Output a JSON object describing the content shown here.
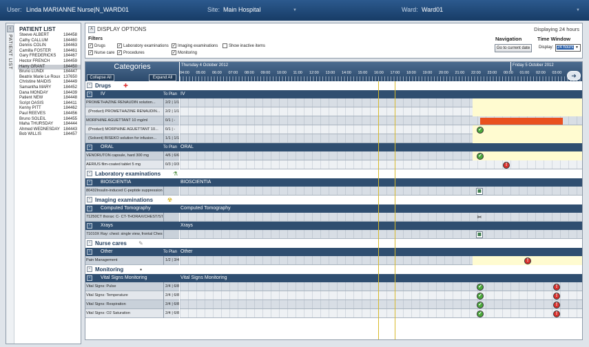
{
  "header": {
    "user_label": "User:",
    "user_name": "Linda MARIANNE",
    "user_role": "Nurse|N_WARD01",
    "site_label": "Site:",
    "site_value": "Main Hospital",
    "ward_label": "Ward:",
    "ward_value": "Ward01"
  },
  "sidebar": {
    "vertical_label": "PATIENT LIST",
    "title": "PATIENT LIST",
    "patients": [
      {
        "name": "Steeve ALBERT",
        "id": "184458"
      },
      {
        "name": "Cathy CALLUM",
        "id": "184460"
      },
      {
        "name": "Dennis COLIN",
        "id": "184463"
      },
      {
        "name": "Camilla FOSTER",
        "id": "184461"
      },
      {
        "name": "Gary FREDERICKS",
        "id": "184467"
      },
      {
        "name": "Hector FRENCH",
        "id": "184459"
      },
      {
        "name": "Harry GRANT",
        "id": "184450"
      },
      {
        "name": "Bruno LUNDI",
        "id": "184447"
      },
      {
        "name": "Beatrix Marie Le Roux",
        "id": "137650"
      },
      {
        "name": "Christine MAIDIS",
        "id": "184449"
      },
      {
        "name": "Samantha MARY",
        "id": "184452"
      },
      {
        "name": "Dana MONDAY",
        "id": "184439"
      },
      {
        "name": "Patient NEW",
        "id": "184448"
      },
      {
        "name": "Script OASIS",
        "id": "184411"
      },
      {
        "name": "Kenny PITT",
        "id": "184462"
      },
      {
        "name": "Paul REEVES",
        "id": "184456"
      },
      {
        "name": "Bruno SOLEIL",
        "id": "184455"
      },
      {
        "name": "Maha THURSDAY",
        "id": "184444"
      },
      {
        "name": "Ahmed WEDNESDAY",
        "id": "184443"
      },
      {
        "name": "Bob WILLIS",
        "id": "184457"
      }
    ],
    "selected_index": 6
  },
  "display": {
    "title": "DISPLAY OPTIONS",
    "hours": "Displaying 24 hours",
    "filters_label": "Filters",
    "filters": [
      {
        "label": "Drugs",
        "checked": "✓"
      },
      {
        "label": "Nurse care",
        "checked": "✓"
      },
      {
        "label": "Laboratory examinations",
        "checked": "✓"
      },
      {
        "label": "Procedures",
        "checked": "✓"
      },
      {
        "label": "Imaging examinations",
        "checked": "✓"
      },
      {
        "label": "Monitoring",
        "checked": "✓"
      },
      {
        "label": "Show inactive items",
        "checked": ""
      }
    ],
    "navigation_label": "Navigation",
    "nav_button": "Go to current date",
    "time_window_label": "Time Window",
    "display_label": "Display:",
    "display_value": "24 hours"
  },
  "grid": {
    "categories_title": "Categories",
    "collapse_all": "Collapse All",
    "expand_all": "Expand All",
    "day1": "Thursday 4 October 2012",
    "day2": "Friday 5 October 2012",
    "hours": [
      "04:00",
      "05:00",
      "06:00",
      "07:00",
      "08:00",
      "09:00",
      "10:00",
      "11:00",
      "12:00",
      "13:00",
      "14:00",
      "15:00",
      "16:00",
      "17:00",
      "18:00",
      "19:00",
      "20:00",
      "21:00",
      "22:00",
      "23:00",
      "00:00",
      "01:00",
      "02:00",
      "03:00"
    ]
  },
  "rows": [
    {
      "type": "section",
      "label": "Drugs",
      "icon": "drugs-icon"
    },
    {
      "type": "group",
      "label": "IV",
      "to_plan": "To Plan",
      "label2": "IV"
    },
    {
      "type": "item",
      "name": "PROMETHAZINE RENAUDIN solution...",
      "value": "2/2 | 1/1",
      "alt": false,
      "yellow": true
    },
    {
      "type": "item",
      "name": "(Product) PROMETHAZINE RENAUDIN...",
      "value": "2/2 | 1/1",
      "alt": true,
      "indent": true,
      "yellow": true
    },
    {
      "type": "item",
      "name": "MORPHINE AGUETTANT 10 mg/ml",
      "value": "0/1 | -",
      "alt": false,
      "redbar": true
    },
    {
      "type": "item",
      "name": "(Product) MORPHINE AGUETTANT 10...",
      "value": "0/1 | -",
      "alt": true,
      "indent": true,
      "yellow": true,
      "marker": "g"
    },
    {
      "type": "item",
      "name": "(Solvent) BISEKO solution for infusion...",
      "value": "1/1 | 1/1",
      "alt": false,
      "indent": true,
      "yellow": true
    },
    {
      "type": "group",
      "label": "ORAL",
      "to_plan": "To Plan",
      "label2": "ORAL"
    },
    {
      "type": "item",
      "name": "VENORUTON capsule, hard 300 mg",
      "value": "4/6 | 6/6",
      "alt": false,
      "yellow": true,
      "marker": "g"
    },
    {
      "type": "item",
      "name": "AERIUS film-coated tablet 5 mg",
      "value": "0/3 | 0/3",
      "alt": true,
      "marker2": "r"
    },
    {
      "type": "section",
      "label": "Laboratory examinations",
      "icon": "lab-icon"
    },
    {
      "type": "group",
      "label": "BIOSCIENTIA",
      "to_plan": "",
      "label2": "BIOSCIENTIA"
    },
    {
      "type": "item",
      "name": "80432Insulin-induced C-peptide suppression...",
      "value": "",
      "alt": false,
      "marker": "cal"
    },
    {
      "type": "section",
      "label": "Imaging examinations",
      "icon": "radiation-icon"
    },
    {
      "type": "group",
      "label": "Computed Tomography",
      "to_plan": "",
      "label2": "Computed Tomography"
    },
    {
      "type": "item",
      "name": "71250CT thorax: C- CT-THORAX/CHEST/STERNUM",
      "value": "",
      "alt": false,
      "marker": "wr"
    },
    {
      "type": "group",
      "label": "Xrays",
      "to_plan": "",
      "label2": "Xrays"
    },
    {
      "type": "item",
      "name": "71010X Ray: chest: single view, frontal Chest AP...",
      "value": "",
      "alt": false,
      "marker": "cal"
    },
    {
      "type": "section",
      "label": "Nurse cares",
      "icon": "nurse-icon"
    },
    {
      "type": "group",
      "label": "Other",
      "to_plan": "To Plan",
      "label2": "Other"
    },
    {
      "type": "item",
      "name": "Pain Management",
      "value": "1/2 | 3/4",
      "alt": false,
      "yellow": true,
      "marker3": "r"
    },
    {
      "type": "section",
      "label": "Monitoring",
      "icon": "monitor-icon"
    },
    {
      "type": "group",
      "label": "Vital Signs Monitoring",
      "to_plan": "",
      "label2": "Vital Signs Monitoring"
    },
    {
      "type": "item",
      "name": "Vital Signs: Pulse",
      "value": "2/4 | 6/8",
      "alt": false,
      "marker": "g",
      "marker4": "r"
    },
    {
      "type": "item",
      "name": "Vital Signs: Temperature",
      "value": "2/4 | 6/8",
      "alt": true,
      "marker": "g",
      "marker4": "r"
    },
    {
      "type": "item",
      "name": "Vital Signs: Respiration",
      "value": "2/4 | 6/8",
      "alt": false,
      "marker": "g",
      "marker4": "r"
    },
    {
      "type": "item",
      "name": "Vital Signs: O2 Saturation",
      "value": "2/4 | 6/8",
      "alt": true,
      "marker": "g",
      "marker4": "r"
    }
  ],
  "colors": {
    "header": "#1f4a78",
    "group": "#2f4e70",
    "current_time_line": "#d7b928",
    "planned": "#fffbd0",
    "infusion": "#e9501f",
    "done": "#4aa83a",
    "overdue": "#d8302c"
  }
}
